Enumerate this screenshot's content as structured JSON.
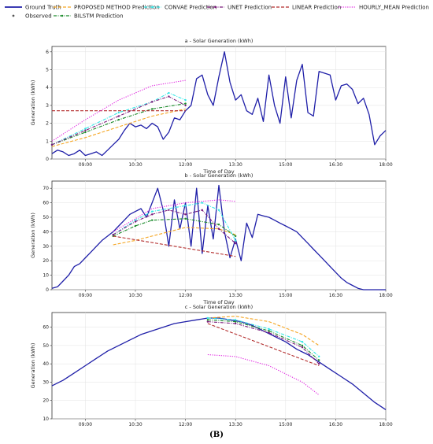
{
  "figure_caption": "(B)",
  "legend": {
    "entries": [
      {
        "key": "gt",
        "label": "Ground Truth",
        "color": "#1f1fa8",
        "style": "solid"
      },
      {
        "key": "obs",
        "label": "Observed",
        "color": "#555555",
        "style": "dot"
      },
      {
        "key": "proposed",
        "label": "PROPOSED METHOD Prediction",
        "color": "#f5a623",
        "style": "dashed"
      },
      {
        "key": "bilstm",
        "label": "BILSTM Prediction",
        "color": "#1a8a2a",
        "style": "dash-dot"
      },
      {
        "key": "convae",
        "label": "CONVAE Prediction",
        "color": "#33e6e6",
        "style": "dash-dot"
      },
      {
        "key": "unet",
        "label": "UNET Prediction",
        "color": "#7a1a7a",
        "style": "dash-dot"
      },
      {
        "key": "linear",
        "label": "LINEAR Prediction",
        "color": "#b22a2a",
        "style": "dashed"
      },
      {
        "key": "hourly",
        "label": "HOURLY_MEAN Prediction",
        "color": "#e020e0",
        "style": "dotted"
      }
    ]
  },
  "chart_data": [
    {
      "type": "line",
      "title": "a - Solar Generation (kWh)",
      "xlabel": "Time of Day",
      "ylabel": "Generation (kWh)",
      "xlim": [
        "08:00",
        "18:00"
      ],
      "ylim": [
        0,
        6.3
      ],
      "xticks": [
        "09:00",
        "10:30",
        "12:00",
        "13:30",
        "15:00",
        "16:30",
        "18:00"
      ],
      "yticks": [
        0,
        1,
        2,
        3,
        4,
        5,
        6
      ],
      "grid": true,
      "series": [
        {
          "key": "gt",
          "name": "Ground Truth",
          "x": [
            "08:00",
            "08:10",
            "08:20",
            "08:30",
            "08:40",
            "08:50",
            "09:00",
            "09:10",
            "09:20",
            "09:30",
            "09:40",
            "09:50",
            "10:00",
            "10:10",
            "10:20",
            "10:30",
            "10:40",
            "10:50",
            "11:00",
            "11:10",
            "11:20",
            "11:30",
            "11:40",
            "11:50",
            "12:00",
            "12:10",
            "12:20",
            "12:30",
            "12:40",
            "12:50",
            "13:00",
            "13:10",
            "13:20",
            "13:30",
            "13:40",
            "13:50",
            "14:00",
            "14:10",
            "14:20",
            "14:30",
            "14:40",
            "14:50",
            "15:00",
            "15:10",
            "15:20",
            "15:30",
            "15:40",
            "15:50",
            "16:00",
            "16:10",
            "16:20",
            "16:30",
            "16:40",
            "16:50",
            "17:00",
            "17:10",
            "17:20",
            "17:30",
            "17:40",
            "17:50",
            "18:00"
          ],
          "y": [
            0.3,
            0.5,
            0.4,
            0.2,
            0.3,
            0.5,
            0.2,
            0.3,
            0.4,
            0.2,
            0.5,
            0.8,
            1.1,
            1.6,
            2.0,
            1.8,
            1.9,
            1.7,
            2.0,
            1.8,
            1.1,
            1.5,
            2.3,
            2.2,
            2.7,
            3.0,
            4.5,
            4.7,
            3.6,
            3.0,
            4.6,
            6.0,
            4.3,
            3.3,
            3.6,
            2.7,
            2.5,
            3.4,
            2.1,
            4.7,
            3.0,
            2.0,
            4.6,
            2.3,
            4.4,
            5.3,
            2.6,
            2.4,
            4.9,
            4.8,
            4.7,
            3.3,
            4.1,
            4.2,
            3.9,
            3.1,
            3.4,
            2.5,
            0.8,
            1.3,
            1.6
          ]
        },
        {
          "key": "proposed",
          "name": "PROPOSED METHOD Prediction",
          "x": [
            "08:00",
            "09:00",
            "10:00",
            "11:00",
            "12:00"
          ],
          "y": [
            0.7,
            1.2,
            1.8,
            2.4,
            2.8
          ]
        },
        {
          "key": "bilstm",
          "name": "BILSTM Prediction",
          "x": [
            "08:00",
            "09:00",
            "10:00",
            "11:00",
            "12:00"
          ],
          "y": [
            0.8,
            1.5,
            2.2,
            2.8,
            3.1
          ]
        },
        {
          "key": "convae",
          "name": "CONVAE Prediction",
          "x": [
            "08:00",
            "09:00",
            "10:00",
            "11:00",
            "11:30",
            "12:00"
          ],
          "y": [
            0.8,
            1.7,
            2.6,
            3.2,
            3.7,
            3.3
          ]
        },
        {
          "key": "unet",
          "name": "UNET Prediction",
          "x": [
            "08:00",
            "09:00",
            "10:00",
            "11:00",
            "11:30",
            "12:00"
          ],
          "y": [
            0.8,
            1.6,
            2.4,
            3.2,
            3.5,
            3.0
          ]
        },
        {
          "key": "linear",
          "name": "LINEAR Prediction",
          "x": [
            "08:00",
            "12:00"
          ],
          "y": [
            2.7,
            2.7
          ]
        },
        {
          "key": "hourly",
          "name": "HOURLY_MEAN Prediction",
          "x": [
            "08:00",
            "09:00",
            "10:00",
            "11:00",
            "12:00"
          ],
          "y": [
            1.0,
            2.2,
            3.3,
            4.1,
            4.4
          ]
        }
      ]
    },
    {
      "type": "line",
      "title": "b - Solar Generation (kWh)",
      "xlabel": "Time of Day",
      "ylabel": "Generation (kWh)",
      "xlim": [
        "08:00",
        "18:00"
      ],
      "ylim": [
        0,
        75
      ],
      "xticks": [
        "09:00",
        "10:30",
        "12:00",
        "13:30",
        "15:00",
        "16:30",
        "18:00"
      ],
      "yticks": [
        0,
        10,
        20,
        30,
        40,
        50,
        60,
        70
      ],
      "grid": true,
      "series": [
        {
          "key": "gt",
          "name": "Ground Truth",
          "x": [
            "08:00",
            "08:10",
            "08:20",
            "08:30",
            "08:40",
            "08:50",
            "09:00",
            "09:10",
            "09:20",
            "09:30",
            "09:40",
            "09:50",
            "10:00",
            "10:10",
            "10:20",
            "10:30",
            "10:40",
            "10:50",
            "11:00",
            "11:10",
            "11:20",
            "11:30",
            "11:40",
            "11:50",
            "12:00",
            "12:10",
            "12:20",
            "12:30",
            "12:40",
            "12:50",
            "13:00",
            "13:10",
            "13:20",
            "13:30",
            "13:40",
            "13:50",
            "14:00",
            "14:10",
            "14:20",
            "14:30",
            "14:40",
            "14:50",
            "15:00",
            "15:10",
            "15:20",
            "15:30",
            "15:40",
            "15:50",
            "16:00",
            "16:10",
            "16:20",
            "16:30",
            "16:40",
            "16:50",
            "17:00",
            "17:10",
            "17:20",
            "17:30",
            "17:40",
            "17:50",
            "18:00"
          ],
          "y": [
            1,
            2,
            6,
            10,
            16,
            18,
            22,
            26,
            30,
            34,
            37,
            40,
            44,
            48,
            52,
            54,
            56,
            50,
            60,
            70,
            55,
            30,
            62,
            42,
            60,
            30,
            70,
            25,
            58,
            35,
            72,
            40,
            22,
            35,
            20,
            46,
            36,
            52,
            51,
            50,
            48,
            46,
            44,
            42,
            40,
            36,
            32,
            28,
            24,
            20,
            16,
            12,
            8,
            5,
            3,
            1,
            0,
            0,
            0,
            0,
            0
          ]
        },
        {
          "key": "proposed",
          "name": "PROPOSED METHOD Prediction",
          "x": [
            "09:50",
            "10:30",
            "11:00",
            "12:00",
            "13:00",
            "13:30"
          ],
          "y": [
            31,
            34,
            37,
            43,
            42,
            38
          ]
        },
        {
          "key": "bilstm",
          "name": "BILSTM Prediction",
          "x": [
            "09:50",
            "10:30",
            "11:00",
            "12:00",
            "13:00",
            "13:30"
          ],
          "y": [
            37,
            44,
            48,
            49,
            45,
            37
          ]
        },
        {
          "key": "convae",
          "name": "CONVAE Prediction",
          "x": [
            "09:50",
            "10:30",
            "11:00",
            "12:00",
            "12:30",
            "13:00",
            "13:30"
          ],
          "y": [
            38,
            48,
            54,
            58,
            60,
            55,
            34
          ]
        },
        {
          "key": "unet",
          "name": "UNET Prediction",
          "x": [
            "09:50",
            "10:30",
            "11:00",
            "11:30",
            "12:00",
            "12:30",
            "13:00",
            "13:30"
          ],
          "y": [
            38,
            47,
            52,
            55,
            52,
            55,
            42,
            32
          ]
        },
        {
          "key": "linear",
          "name": "LINEAR Prediction",
          "x": [
            "09:50",
            "13:30"
          ],
          "y": [
            37,
            23
          ]
        },
        {
          "key": "hourly",
          "name": "HOURLY_MEAN Prediction",
          "x": [
            "09:50",
            "10:30",
            "11:00",
            "12:00",
            "13:00",
            "13:30"
          ],
          "y": [
            40,
            49,
            56,
            60,
            62,
            61
          ]
        }
      ]
    },
    {
      "type": "line",
      "title": "c - Solar Generation (kWh)",
      "xlabel": "",
      "ylabel": "Generation (kWh)",
      "xlim": [
        "08:00",
        "18:00"
      ],
      "ylim": [
        10,
        68
      ],
      "xticks": [
        "09:00",
        "10:30",
        "12:00",
        "13:30",
        "15:00",
        "16:30",
        "18:00"
      ],
      "yticks": [
        10,
        20,
        30,
        40,
        50,
        60
      ],
      "grid": true,
      "series": [
        {
          "key": "gt",
          "name": "Ground Truth",
          "x": [
            "08:00",
            "08:20",
            "08:40",
            "09:00",
            "09:20",
            "09:40",
            "10:00",
            "10:20",
            "10:40",
            "11:00",
            "11:20",
            "11:40",
            "12:00",
            "12:20",
            "12:40",
            "13:00",
            "13:20",
            "13:40",
            "14:00",
            "14:20",
            "14:40",
            "15:00",
            "15:20",
            "15:40",
            "16:00",
            "16:20",
            "16:40",
            "17:00",
            "17:20",
            "17:40",
            "18:00"
          ],
          "y": [
            28,
            31,
            35,
            39,
            43,
            47,
            50,
            53,
            56,
            58,
            60,
            62,
            63,
            64,
            65,
            65,
            64,
            63,
            61,
            58,
            55,
            52,
            48,
            45,
            41,
            37,
            33,
            29,
            24,
            19,
            15
          ]
        },
        {
          "key": "proposed",
          "name": "PROPOSED METHOD Prediction",
          "x": [
            "12:40",
            "13:30",
            "14:30",
            "15:30",
            "16:00"
          ],
          "y": [
            65,
            66,
            63,
            56,
            50
          ]
        },
        {
          "key": "bilstm",
          "name": "BILSTM Prediction",
          "x": [
            "12:40",
            "13:30",
            "14:30",
            "15:30",
            "16:00"
          ],
          "y": [
            64,
            63,
            58,
            50,
            42
          ]
        },
        {
          "key": "convae",
          "name": "CONVAE Prediction",
          "x": [
            "12:40",
            "13:30",
            "14:30",
            "15:30",
            "16:00"
          ],
          "y": [
            65,
            64,
            59,
            52,
            44
          ]
        },
        {
          "key": "unet",
          "name": "UNET Prediction",
          "x": [
            "12:40",
            "13:30",
            "14:30",
            "15:30",
            "16:00"
          ],
          "y": [
            63,
            62,
            57,
            49,
            40
          ]
        },
        {
          "key": "linear",
          "name": "LINEAR Prediction",
          "x": [
            "12:40",
            "16:00"
          ],
          "y": [
            62,
            39
          ]
        },
        {
          "key": "hourly",
          "name": "HOURLY_MEAN Prediction",
          "x": [
            "12:40",
            "13:30",
            "14:30",
            "15:30",
            "16:00"
          ],
          "y": [
            45,
            44,
            39,
            30,
            23
          ]
        }
      ]
    }
  ]
}
